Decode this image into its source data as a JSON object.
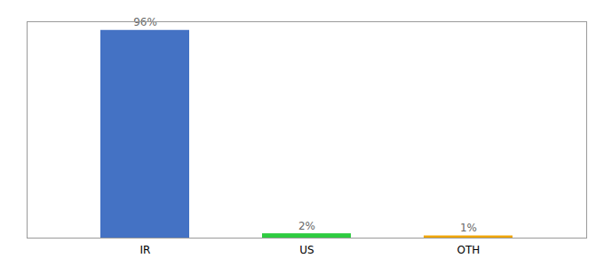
{
  "chart_data": {
    "type": "bar",
    "categories": [
      "IR",
      "US",
      "OTH"
    ],
    "values": [
      96,
      2,
      1
    ],
    "value_labels": [
      "96%",
      "2%",
      "1%"
    ],
    "colors": [
      "#4472c4",
      "#2ecc40",
      "#f0a500"
    ],
    "ylim": [
      0,
      100
    ],
    "data_labels": true,
    "tick_labels": "x",
    "grid": false
  }
}
